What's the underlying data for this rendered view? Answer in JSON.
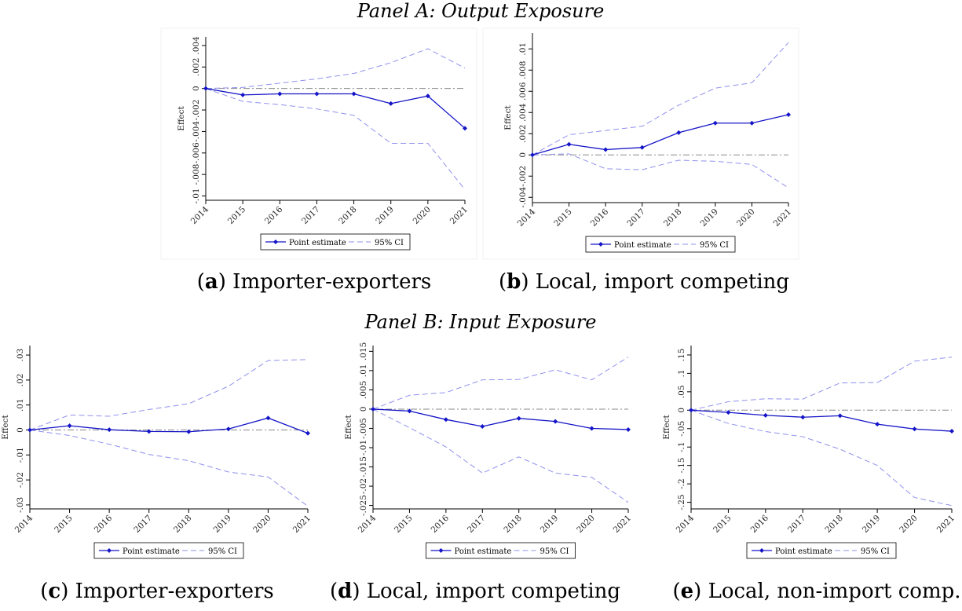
{
  "panel_titles": [
    "Panel A: Output Exposure",
    "Panel B: Input Exposure"
  ],
  "chart_data": [
    {
      "type": "line",
      "caption_label": "a",
      "caption": "Importer-exporters",
      "ylabel": "Effect",
      "x": [
        2014,
        2015,
        2016,
        2017,
        2018,
        2019,
        2020,
        2021
      ],
      "xlim": [
        2014,
        2021
      ],
      "xticks": [
        2014,
        2015,
        2016,
        2017,
        2018,
        2019,
        2020,
        2021
      ],
      "ylim": [
        -0.0104,
        0.0048
      ],
      "yticks": [
        {
          "value": -0.01,
          "label": "-.01"
        },
        {
          "value": -0.008,
          "label": "-.008"
        },
        {
          "value": -0.006,
          "label": "-.006"
        },
        {
          "value": -0.004,
          "label": "-.004"
        },
        {
          "value": -0.002,
          "label": "-.002"
        },
        0,
        {
          "value": 0.002,
          "label": ".002"
        },
        {
          "value": 0.004,
          "label": ".004"
        }
      ],
      "hline": 0,
      "hline_color": "#888888",
      "series": [
        {
          "name": "Point estimate",
          "color": "#1414c8",
          "values": [
            0,
            -0.0006,
            -0.0005,
            -0.0005,
            -0.0005,
            -0.0014,
            -0.0007,
            -0.0037
          ]
        },
        {
          "name": "95% CI",
          "color": "#9090ee",
          "upper": [
            0,
            0.0001,
            0.0005,
            0.0009,
            0.0014,
            0.0024,
            0.0037,
            0.0019
          ],
          "lower": [
            0,
            -0.0012,
            -0.0015,
            -0.0019,
            -0.0025,
            -0.0051,
            -0.0051,
            -0.0094
          ]
        }
      ]
    },
    {
      "type": "line",
      "caption_label": "b",
      "caption": "Local, import competing",
      "ylabel": "Effect",
      "x": [
        2014,
        2015,
        2016,
        2017,
        2018,
        2019,
        2020,
        2021
      ],
      "xlim": [
        2014,
        2021
      ],
      "xticks": [
        2014,
        2015,
        2016,
        2017,
        2018,
        2019,
        2020,
        2021
      ],
      "ylim": [
        -0.0045,
        0.0115
      ],
      "yticks": [
        {
          "value": -0.004,
          "label": "-.004"
        },
        {
          "value": -0.002,
          "label": "-.002"
        },
        0,
        {
          "value": 0.002,
          "label": ".002"
        },
        {
          "value": 0.004,
          "label": ".004"
        },
        {
          "value": 0.006,
          "label": ".006"
        },
        {
          "value": 0.008,
          "label": ".008"
        },
        {
          "value": 0.01,
          "label": ".01"
        }
      ],
      "hline": 0,
      "hline_color": "#888888",
      "series": [
        {
          "name": "Point estimate",
          "color": "#1414c8",
          "values": [
            0,
            0.001,
            0.0005,
            0.0007,
            0.0021,
            0.003,
            0.003,
            0.0038
          ]
        },
        {
          "name": "95% CI",
          "color": "#9090ee",
          "upper": [
            0,
            0.0019,
            0.0023,
            0.0027,
            0.0047,
            0.0063,
            0.0068,
            0.0106
          ],
          "lower": [
            0,
            0.0001,
            -0.0013,
            -0.0014,
            -0.0005,
            -0.0006,
            -0.0009,
            -0.0031
          ]
        }
      ]
    },
    {
      "type": "line",
      "caption_label": "c",
      "caption": "Importer-exporters",
      "ylabel": "Effect",
      "x": [
        2014,
        2015,
        2016,
        2017,
        2018,
        2019,
        2020,
        2021
      ],
      "xlim": [
        2014,
        2021
      ],
      "xticks": [
        2014,
        2015,
        2016,
        2017,
        2018,
        2019,
        2020,
        2021
      ],
      "ylim": [
        -0.0316,
        0.0338
      ],
      "yticks": [
        {
          "value": -0.03,
          "label": "-.03"
        },
        {
          "value": -0.02,
          "label": "-.02"
        },
        {
          "value": -0.01,
          "label": "-.01"
        },
        0,
        {
          "value": 0.01,
          "label": ".01"
        },
        {
          "value": 0.02,
          "label": ".02"
        },
        {
          "value": 0.03,
          "label": ".03"
        }
      ],
      "hline": 0,
      "hline_color": "#888888",
      "series": [
        {
          "name": "Point estimate",
          "color": "#1414c8",
          "values": [
            0,
            0.0017,
            0.0001,
            -0.0006,
            -0.0007,
            0.0004,
            0.0048,
            -0.0013
          ]
        },
        {
          "name": "95% CI",
          "color": "#9090ee",
          "upper": [
            0,
            0.006,
            0.0055,
            0.0082,
            0.0105,
            0.0175,
            0.0278,
            0.0282
          ],
          "lower": [
            0,
            -0.0022,
            -0.0057,
            -0.0098,
            -0.0123,
            -0.0168,
            -0.0188,
            -0.0305
          ]
        }
      ]
    },
    {
      "type": "line",
      "caption_label": "d",
      "caption": "Local, import competing",
      "ylabel": "Effect",
      "x": [
        2014,
        2015,
        2016,
        2017,
        2018,
        2019,
        2020,
        2021
      ],
      "xlim": [
        2014,
        2021
      ],
      "xticks": [
        2014,
        2015,
        2016,
        2017,
        2018,
        2019,
        2020,
        2021
      ],
      "ylim": [
        -0.0259,
        0.0165
      ],
      "yticks": [
        {
          "value": -0.025,
          "label": "-.025"
        },
        {
          "value": -0.02,
          "label": "-.02"
        },
        {
          "value": -0.015,
          "label": "-.015"
        },
        {
          "value": -0.01,
          "label": "-.01"
        },
        {
          "value": -0.005,
          "label": "-.005"
        },
        0,
        {
          "value": 0.005,
          "label": ".005"
        },
        {
          "value": 0.01,
          "label": ".01"
        },
        {
          "value": 0.015,
          "label": ".015"
        }
      ],
      "hline": 0,
      "hline_color": "#888888",
      "series": [
        {
          "name": "Point estimate",
          "color": "#1414c8",
          "values": [
            0,
            -0.0005,
            -0.0027,
            -0.0045,
            -0.0024,
            -0.0032,
            -0.005,
            -0.0053
          ]
        },
        {
          "name": "95% CI",
          "color": "#9090ee",
          "upper": [
            0,
            0.0036,
            0.0043,
            0.0076,
            0.0077,
            0.0102,
            0.0076,
            0.0135
          ],
          "lower": [
            0,
            -0.0048,
            -0.0098,
            -0.0166,
            -0.0124,
            -0.0166,
            -0.0177,
            -0.0242
          ]
        }
      ]
    },
    {
      "type": "line",
      "caption_label": "e",
      "caption": "Local, non-import comp.",
      "ylabel": "Effect",
      "x": [
        2014,
        2015,
        2016,
        2017,
        2018,
        2019,
        2020,
        2021
      ],
      "xlim": [
        2014,
        2021
      ],
      "xticks": [
        2014,
        2015,
        2016,
        2017,
        2018,
        2019,
        2020,
        2021
      ],
      "ylim": [
        -0.268,
        0.1755
      ],
      "yticks": [
        {
          "value": -0.25,
          "label": "-.25"
        },
        {
          "value": -0.2,
          "label": "-.2"
        },
        {
          "value": -0.15,
          "label": "-.15"
        },
        {
          "value": -0.1,
          "label": "-.1"
        },
        {
          "value": -0.05,
          "label": "-.05"
        },
        0,
        {
          "value": 0.05,
          "label": ".05"
        },
        {
          "value": 0.1,
          "label": ".1"
        },
        {
          "value": 0.15,
          "label": ".15"
        }
      ],
      "hline": 0,
      "hline_color": "#888888",
      "series": [
        {
          "name": "Point estimate",
          "color": "#1414c8",
          "values": [
            0,
            -0.006,
            -0.014,
            -0.019,
            -0.015,
            -0.038,
            -0.051,
            -0.057
          ]
        },
        {
          "name": "95% CI",
          "color": "#9090ee",
          "upper": [
            0,
            0.023,
            0.031,
            0.03,
            0.074,
            0.075,
            0.133,
            0.144
          ],
          "lower": [
            0,
            -0.036,
            -0.058,
            -0.072,
            -0.106,
            -0.15,
            -0.237,
            -0.259
          ]
        }
      ]
    }
  ]
}
